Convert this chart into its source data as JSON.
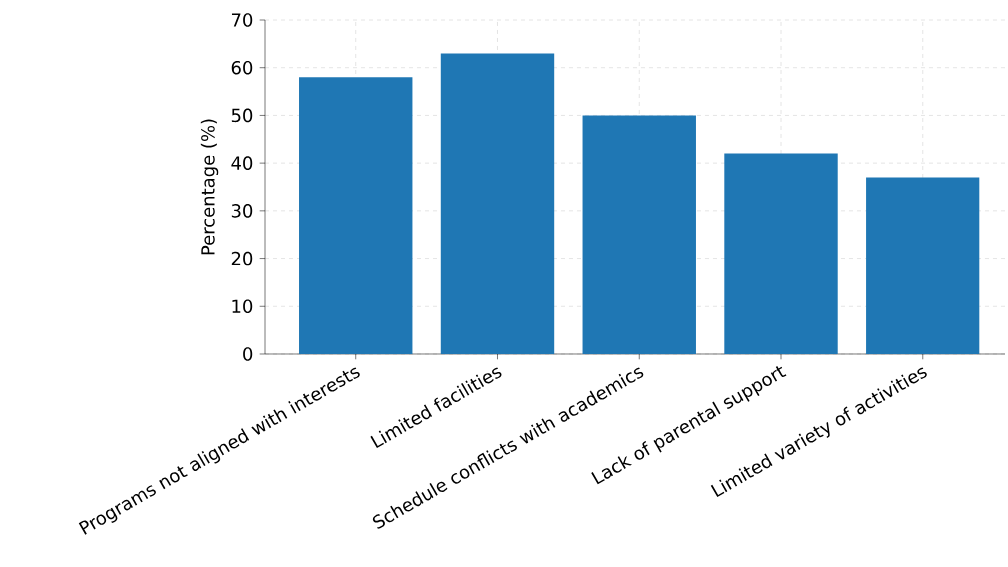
{
  "chart_data": {
    "type": "bar",
    "ylabel": "Percentage (%)",
    "categories": [
      "Programs not aligned with interests",
      "Limited facilities",
      "Schedule conflicts with academics",
      "Lack of parental support",
      "Limited variety of activities"
    ],
    "values": [
      58,
      63,
      50,
      42,
      37
    ],
    "color": "#1f77b4",
    "ylim": [
      0,
      70
    ],
    "yticks": [
      0,
      10,
      20,
      30,
      40,
      50,
      60,
      70
    ],
    "grid": true
  }
}
